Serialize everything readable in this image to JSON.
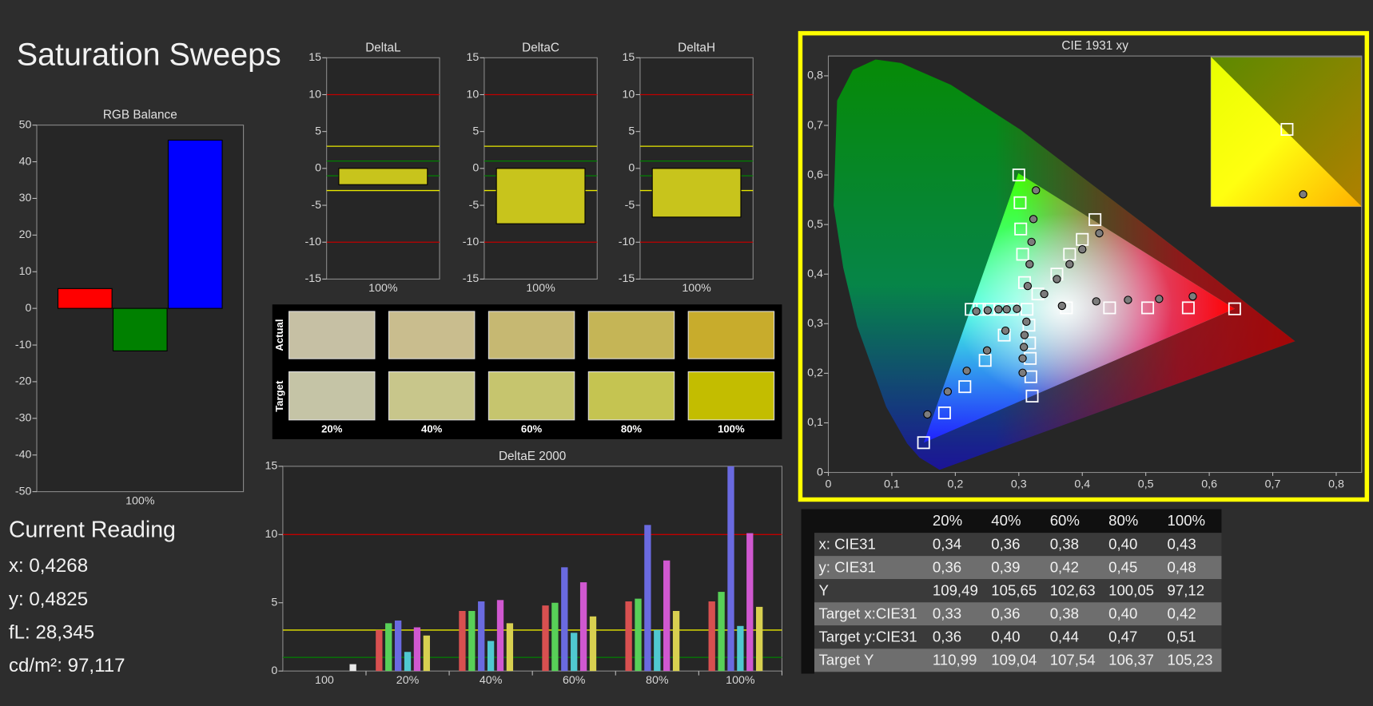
{
  "title": "Saturation Sweeps",
  "chart_data": [
    {
      "type": "bar",
      "title": "RGB Balance",
      "categories": [
        "100%"
      ],
      "series": [
        {
          "color": "#ff0000",
          "values": [
            5.4
          ]
        },
        {
          "color": "#008000",
          "values": [
            -11.6
          ]
        },
        {
          "color": "#0000ff",
          "values": [
            45.9
          ]
        }
      ],
      "ylim": [
        -50,
        50
      ],
      "yticks": [
        -50,
        -40,
        -30,
        -20,
        -10,
        0,
        10,
        20,
        30,
        40,
        50
      ]
    },
    {
      "type": "bar",
      "title": "DeltaL",
      "categories": [
        "100%"
      ],
      "values": [
        -2.2
      ],
      "color": "#c8c41c",
      "ylim": [
        -15,
        15
      ],
      "yticks": [
        -15,
        -10,
        -5,
        0,
        5,
        10,
        15
      ],
      "reference_lines": [
        {
          "value": 10,
          "color": "#c00000"
        },
        {
          "value": -10,
          "color": "#c00000"
        },
        {
          "value": 3,
          "color": "#e8e800"
        },
        {
          "value": -3,
          "color": "#e8e800"
        },
        {
          "value": 1,
          "color": "#008000"
        },
        {
          "value": -1,
          "color": "#008000"
        }
      ]
    },
    {
      "type": "bar",
      "title": "DeltaC",
      "categories": [
        "100%"
      ],
      "values": [
        -7.5
      ],
      "color": "#c8c41c",
      "ylim": [
        -15,
        15
      ],
      "yticks": [
        -15,
        -10,
        -5,
        0,
        5,
        10,
        15
      ],
      "reference_lines": [
        {
          "value": 10,
          "color": "#c00000"
        },
        {
          "value": -10,
          "color": "#c00000"
        },
        {
          "value": 3,
          "color": "#e8e800"
        },
        {
          "value": -3,
          "color": "#e8e800"
        },
        {
          "value": 1,
          "color": "#008000"
        },
        {
          "value": -1,
          "color": "#008000"
        }
      ]
    },
    {
      "type": "bar",
      "title": "DeltaH",
      "categories": [
        "100%"
      ],
      "values": [
        -6.6
      ],
      "color": "#c8c41c",
      "ylim": [
        -15,
        15
      ],
      "yticks": [
        -15,
        -10,
        -5,
        0,
        5,
        10,
        15
      ],
      "reference_lines": [
        {
          "value": 10,
          "color": "#c00000"
        },
        {
          "value": -10,
          "color": "#c00000"
        },
        {
          "value": 3,
          "color": "#e8e800"
        },
        {
          "value": -3,
          "color": "#e8e800"
        },
        {
          "value": 1,
          "color": "#008000"
        },
        {
          "value": -1,
          "color": "#008000"
        }
      ]
    },
    {
      "type": "bar",
      "title": "DeltaE 2000",
      "categories": [
        "100",
        "20%",
        "40%",
        "60%",
        "80%",
        "100%"
      ],
      "series": [
        {
          "color": "#d85050",
          "values": [
            null,
            3.0,
            4.4,
            4.8,
            5.1,
            5.1
          ]
        },
        {
          "color": "#58d058",
          "values": [
            null,
            3.5,
            4.4,
            5.0,
            5.3,
            5.8
          ]
        },
        {
          "color": "#6a6ae0",
          "values": [
            null,
            3.7,
            5.1,
            7.6,
            10.7,
            15
          ]
        },
        {
          "color": "#50c8d0",
          "values": [
            null,
            1.4,
            2.2,
            2.8,
            3.0,
            3.3
          ]
        },
        {
          "color": "#d058d0",
          "values": [
            null,
            3.2,
            5.2,
            6.5,
            8.1,
            10.1
          ]
        },
        {
          "color": "#d8d050",
          "values": [
            null,
            2.6,
            3.5,
            4.0,
            4.4,
            4.7
          ]
        },
        {
          "color": "#e8e8e8",
          "values": [
            0.5,
            null,
            null,
            null,
            null,
            null
          ]
        }
      ],
      "ylim": [
        0,
        15
      ],
      "yticks": [
        0,
        5,
        10,
        15
      ],
      "reference_lines": [
        {
          "value": 10,
          "color": "#c00000"
        },
        {
          "value": 3,
          "color": "#e8e800"
        },
        {
          "value": 1,
          "color": "#008000"
        }
      ]
    },
    {
      "type": "scatter",
      "title": "CIE 1931 xy",
      "xlim": [
        0,
        0.84
      ],
      "ylim": [
        0,
        0.84
      ],
      "xticks": [
        0,
        {
          "value": 0.1,
          "label": "0,1"
        },
        {
          "value": 0.2,
          "label": "0,2"
        },
        {
          "value": 0.3,
          "label": "0,3"
        },
        {
          "value": 0.4,
          "label": "0,4"
        },
        {
          "value": 0.5,
          "label": "0,5"
        },
        {
          "value": 0.6,
          "label": "0,6"
        },
        {
          "value": 0.7,
          "label": "0,7"
        },
        {
          "value": 0.8,
          "label": "0,8"
        }
      ],
      "yticks": [
        0,
        {
          "value": 0.1,
          "label": "0,1"
        },
        {
          "value": 0.2,
          "label": "0,2"
        },
        {
          "value": 0.3,
          "label": "0,3"
        },
        {
          "value": 0.4,
          "label": "0,4"
        },
        {
          "value": 0.5,
          "label": "0,5"
        },
        {
          "value": 0.6,
          "label": "0,6"
        },
        {
          "value": 0.7,
          "label": "0,7"
        },
        {
          "value": 0.8,
          "label": "0,8"
        }
      ],
      "series": [
        {
          "marker": "square",
          "color": "#ffffff",
          "x": [
            0.375,
            0.443,
            0.503,
            0.567,
            0.64
          ],
          "y": [
            0.332,
            0.332,
            0.332,
            0.332,
            0.33
          ]
        },
        {
          "marker": "square",
          "color": "#ffffff",
          "x": [
            0.309,
            0.306,
            0.303,
            0.302,
            0.3
          ],
          "y": [
            0.383,
            0.44,
            0.491,
            0.544,
            0.6
          ]
        },
        {
          "marker": "square",
          "color": "#ffffff",
          "x": [
            0.277,
            0.247,
            0.215,
            0.183,
            0.15
          ],
          "y": [
            0.277,
            0.226,
            0.173,
            0.12,
            0.06
          ]
        },
        {
          "marker": "square",
          "color": "#ffffff",
          "x": [
            0.29,
            0.27,
            0.253,
            0.238,
            0.225
          ],
          "y": [
            0.329,
            0.329,
            0.329,
            0.329,
            0.329
          ]
        },
        {
          "marker": "square",
          "color": "#ffffff",
          "x": [
            0.316,
            0.317,
            0.318,
            0.319,
            0.321
          ],
          "y": [
            0.297,
            0.261,
            0.23,
            0.193,
            0.154
          ]
        },
        {
          "marker": "square",
          "color": "#ffffff",
          "x": [
            0.33,
            0.36,
            0.38,
            0.4,
            0.42
          ],
          "y": [
            0.36,
            0.4,
            0.44,
            0.47,
            0.51
          ]
        },
        {
          "marker": "square",
          "color": "#ffffff",
          "x": [
            0.313
          ],
          "y": [
            0.329
          ]
        },
        {
          "marker": "circle",
          "color": "#7c7c7c",
          "x": [
            0.368,
            0.422,
            0.472,
            0.521,
            0.574
          ],
          "y": [
            0.336,
            0.345,
            0.348,
            0.35,
            0.355
          ]
        },
        {
          "marker": "circle",
          "color": "#7c7c7c",
          "x": [
            0.314,
            0.317,
            0.32,
            0.323,
            0.327
          ],
          "y": [
            0.376,
            0.42,
            0.465,
            0.511,
            0.569
          ]
        },
        {
          "marker": "circle",
          "color": "#7c7c7c",
          "x": [
            0.279,
            0.25,
            0.218,
            0.188,
            0.156
          ],
          "y": [
            0.286,
            0.246,
            0.205,
            0.163,
            0.117
          ]
        },
        {
          "marker": "circle",
          "color": "#7c7c7c",
          "x": [
            0.297,
            0.281,
            0.268,
            0.251,
            0.233
          ],
          "y": [
            0.33,
            0.329,
            0.329,
            0.327,
            0.325
          ]
        },
        {
          "marker": "circle",
          "color": "#7c7c7c",
          "x": [
            0.312,
            0.309,
            0.308,
            0.306,
            0.306
          ],
          "y": [
            0.304,
            0.277,
            0.253,
            0.23,
            0.201
          ]
        },
        {
          "marker": "circle",
          "color": "#7c7c7c",
          "x": [
            0.34,
            0.36,
            0.38,
            0.4,
            0.4268
          ],
          "y": [
            0.36,
            0.39,
            0.42,
            0.45,
            0.4825
          ]
        }
      ]
    }
  ],
  "swatches": {
    "row_labels": [
      "Actual",
      "Target"
    ],
    "columns": [
      "20%",
      "40%",
      "60%",
      "80%",
      "100%"
    ],
    "actual_colors": [
      "#c6c0a4",
      "#c9bd8e",
      "#c6b872",
      "#c5b556",
      "#c8ac2c"
    ],
    "target_colors": [
      "#c5c4a6",
      "#c8c68b",
      "#c6c56e",
      "#c5c451",
      "#c3bd00"
    ]
  },
  "current_reading": {
    "title": "Current Reading",
    "lines": [
      "x: 0,4268",
      "y: 0,4825",
      "fL: 28,345",
      "cd/m²: 97,117"
    ]
  },
  "table": {
    "columns": [
      "20%",
      "40%",
      "60%",
      "80%",
      "100%"
    ],
    "rows": [
      [
        "x: CIE31",
        "0,34",
        "0,36",
        "0,38",
        "0,40",
        "0,43"
      ],
      [
        "y: CIE31",
        "0,36",
        "0,39",
        "0,42",
        "0,45",
        "0,48"
      ],
      [
        "Y",
        "109,49",
        "105,65",
        "102,63",
        "100,05",
        "97,12"
      ],
      [
        "Target x:CIE31",
        "0,33",
        "0,36",
        "0,38",
        "0,40",
        "0,42"
      ],
      [
        "Target y:CIE31",
        "0,36",
        "0,40",
        "0,44",
        "0,47",
        "0,51"
      ],
      [
        "Target Y",
        "110,99",
        "109,04",
        "107,54",
        "106,37",
        "105,23"
      ]
    ]
  }
}
